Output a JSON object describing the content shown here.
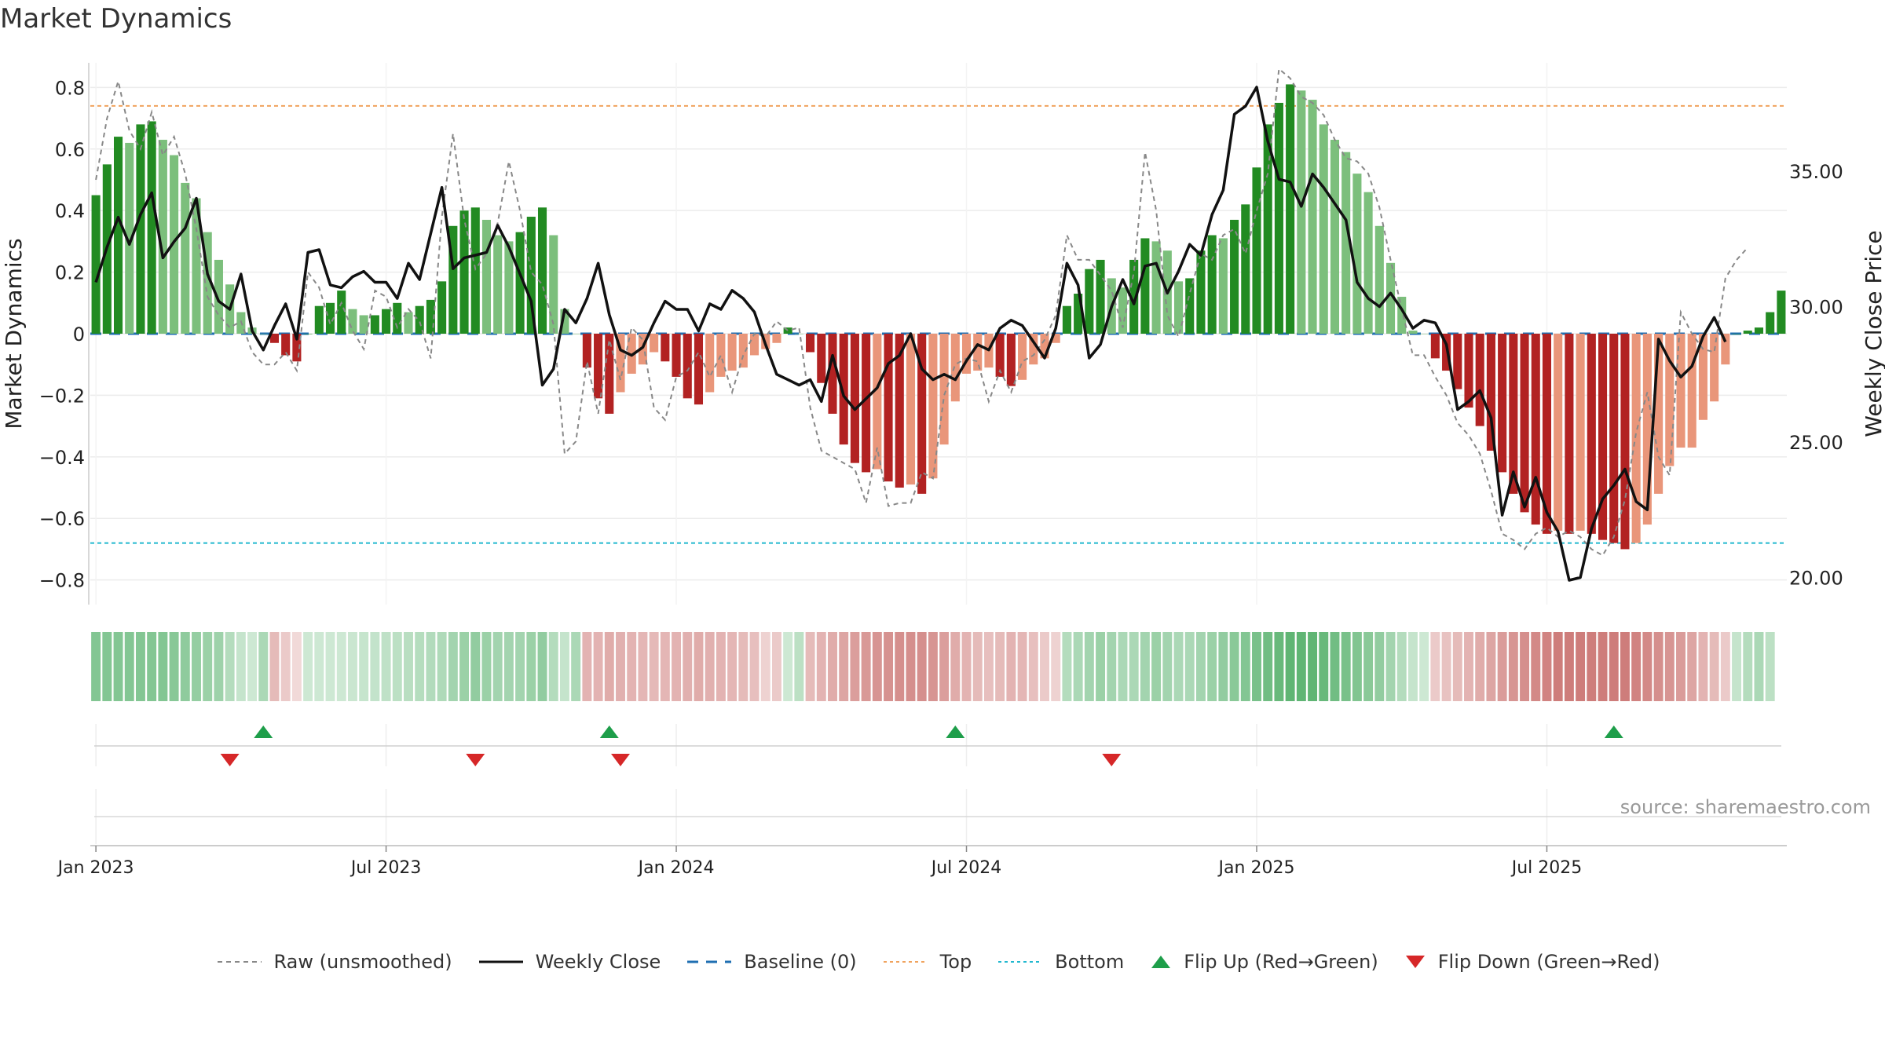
{
  "title": "Market Dynamics",
  "source": "source: sharemaestro.com",
  "colors": {
    "strong_green": "#228b22",
    "light_green": "#7cbf7c",
    "strong_red": "#b22222",
    "light_red": "#e9967a",
    "price_line": "#111111",
    "raw_line": "#888888",
    "baseline": "#1f6fb2",
    "top": "#f0a35e",
    "bottom": "#22b8cf",
    "flip_up": "#1e9e4a",
    "flip_down": "#d62728"
  },
  "legend": [
    {
      "key": "raw",
      "label": "Raw (unsmoothed)"
    },
    {
      "key": "close",
      "label": "Weekly Close"
    },
    {
      "key": "baseline",
      "label": "Baseline (0)"
    },
    {
      "key": "top",
      "label": "Top"
    },
    {
      "key": "bottom",
      "label": "Bottom"
    },
    {
      "key": "flip_up",
      "label": "Flip Up (Red→Green)"
    },
    {
      "key": "flip_down",
      "label": "Flip Down (Green→Red)"
    }
  ],
  "chart_data": {
    "type": "bar",
    "ylabel": "Market Dynamics",
    "y2label": "Weekly Close Price",
    "ylim": [
      -0.88,
      0.88
    ],
    "y2lim": [
      19.0,
      39.0
    ],
    "yticks": [
      {
        "v": 0.8,
        "t": "0.8"
      },
      {
        "v": 0.6,
        "t": "0.6"
      },
      {
        "v": 0.4,
        "t": "0.4"
      },
      {
        "v": 0.2,
        "t": "0.2"
      },
      {
        "v": 0,
        "t": "0"
      },
      {
        "v": -0.2,
        "t": "−0.2"
      },
      {
        "v": -0.4,
        "t": "−0.4"
      },
      {
        "v": -0.6,
        "t": "−0.6"
      },
      {
        "v": -0.8,
        "t": "−0.8"
      }
    ],
    "y2ticks": [
      {
        "v": 35,
        "t": "35.00"
      },
      {
        "v": 30,
        "t": "30.00"
      },
      {
        "v": 25,
        "t": "25.00"
      },
      {
        "v": 20,
        "t": "20.00"
      }
    ],
    "xticks": [
      {
        "i": 0,
        "t": "Jan 2023"
      },
      {
        "i": 26,
        "t": "Jul 2023"
      },
      {
        "i": 52,
        "t": "Jan 2024"
      },
      {
        "i": 78,
        "t": "Jul 2024"
      },
      {
        "i": 104,
        "t": "Jan 2025"
      },
      {
        "i": 130,
        "t": "Jul 2025"
      }
    ],
    "top_line": 0.74,
    "bottom_line": -0.68,
    "start_label": "Jan 2023",
    "momentum": [
      0.45,
      0.55,
      0.64,
      0.62,
      0.68,
      0.69,
      0.63,
      0.58,
      0.49,
      0.44,
      0.33,
      0.24,
      0.16,
      0.07,
      0.02,
      0.0,
      -0.03,
      -0.07,
      -0.09,
      0.0,
      0.09,
      0.1,
      0.14,
      0.08,
      0.06,
      0.06,
      0.08,
      0.1,
      0.07,
      0.09,
      0.11,
      0.17,
      0.35,
      0.4,
      0.41,
      0.37,
      0.32,
      0.3,
      0.33,
      0.38,
      0.41,
      0.32,
      0.08,
      0.0,
      -0.11,
      -0.21,
      -0.26,
      -0.19,
      -0.13,
      -0.1,
      -0.06,
      -0.09,
      -0.14,
      -0.21,
      -0.23,
      -0.19,
      -0.14,
      -0.12,
      -0.11,
      -0.07,
      -0.05,
      -0.03,
      0.02,
      0.0,
      -0.06,
      -0.16,
      -0.26,
      -0.36,
      -0.42,
      -0.45,
      -0.44,
      -0.48,
      -0.5,
      -0.49,
      -0.52,
      -0.47,
      -0.36,
      -0.22,
      -0.13,
      -0.12,
      -0.11,
      -0.14,
      -0.17,
      -0.15,
      -0.1,
      -0.08,
      -0.03,
      0.09,
      0.13,
      0.21,
      0.24,
      0.18,
      0.15,
      0.24,
      0.31,
      0.3,
      0.27,
      0.17,
      0.18,
      0.27,
      0.32,
      0.31,
      0.37,
      0.42,
      0.54,
      0.68,
      0.75,
      0.81,
      0.79,
      0.76,
      0.68,
      0.63,
      0.59,
      0.52,
      0.46,
      0.35,
      0.23,
      0.12,
      0.01,
      0.0,
      -0.08,
      -0.12,
      -0.18,
      -0.24,
      -0.3,
      -0.38,
      -0.45,
      -0.52,
      -0.58,
      -0.62,
      -0.65,
      -0.64,
      -0.65,
      -0.64,
      -0.65,
      -0.67,
      -0.68,
      -0.7,
      -0.68,
      -0.62,
      -0.52,
      -0.43,
      -0.37,
      -0.37,
      -0.28,
      -0.22,
      -0.1,
      0.0,
      0.01,
      0.02,
      0.07,
      0.14
    ],
    "raw": [
      0.5,
      0.7,
      0.82,
      0.66,
      0.6,
      0.72,
      0.58,
      0.64,
      0.52,
      0.34,
      0.12,
      0.06,
      0.02,
      0.04,
      -0.06,
      -0.1,
      -0.1,
      -0.06,
      -0.12,
      0.2,
      0.15,
      0.03,
      0.1,
      0.01,
      -0.05,
      0.14,
      0.12,
      0.02,
      0.08,
      0.04,
      -0.08,
      0.38,
      0.65,
      0.37,
      0.21,
      0.26,
      0.36,
      0.56,
      0.4,
      0.2,
      0.16,
      0.03,
      -0.39,
      -0.35,
      -0.09,
      -0.26,
      -0.02,
      -0.15,
      0.02,
      -0.02,
      -0.24,
      -0.28,
      -0.14,
      -0.12,
      -0.06,
      -0.14,
      -0.07,
      -0.19,
      -0.07,
      0.0,
      -0.01,
      0.04,
      0.01,
      0.02,
      -0.24,
      -0.38,
      -0.4,
      -0.42,
      -0.44,
      -0.55,
      -0.37,
      -0.56,
      -0.55,
      -0.55,
      -0.45,
      -0.47,
      -0.2,
      -0.1,
      -0.08,
      -0.09,
      -0.22,
      -0.12,
      -0.19,
      -0.09,
      -0.07,
      -0.02,
      0.06,
      0.32,
      0.24,
      0.24,
      0.19,
      0.14,
      0.02,
      0.2,
      0.59,
      0.4,
      0.06,
      -0.01,
      0.13,
      0.26,
      0.24,
      0.32,
      0.34,
      0.26,
      0.4,
      0.52,
      0.86,
      0.83,
      0.77,
      0.75,
      0.71,
      0.63,
      0.57,
      0.56,
      0.52,
      0.41,
      0.24,
      0.08,
      -0.07,
      -0.07,
      -0.14,
      -0.2,
      -0.29,
      -0.33,
      -0.39,
      -0.51,
      -0.65,
      -0.67,
      -0.7,
      -0.65,
      -0.63,
      -0.66,
      -0.64,
      -0.66,
      -0.7,
      -0.72,
      -0.66,
      -0.54,
      -0.32,
      -0.19,
      -0.4,
      -0.46,
      0.07,
      0.0,
      -0.05,
      -0.06,
      0.18,
      0.24,
      0.28
    ],
    "close": [
      30.9,
      32.2,
      33.3,
      32.3,
      33.4,
      34.2,
      31.8,
      32.4,
      32.9,
      34.0,
      31.2,
      30.2,
      29.9,
      31.2,
      29.1,
      28.4,
      29.3,
      30.1,
      28.8,
      32.0,
      32.1,
      30.8,
      30.7,
      31.1,
      31.3,
      30.9,
      30.9,
      30.3,
      31.6,
      31.0,
      32.7,
      34.4,
      31.4,
      31.8,
      31.9,
      32.0,
      33.0,
      32.2,
      31.2,
      30.2,
      27.1,
      27.7,
      29.9,
      29.4,
      30.3,
      31.6,
      29.7,
      28.4,
      28.2,
      28.5,
      29.4,
      30.2,
      29.9,
      29.9,
      29.1,
      30.1,
      29.9,
      30.6,
      30.3,
      29.8,
      28.6,
      27.5,
      27.3,
      27.1,
      27.3,
      26.5,
      28.2,
      26.7,
      26.2,
      26.6,
      27.0,
      27.9,
      28.2,
      29.0,
      27.7,
      27.3,
      27.5,
      27.3,
      28.0,
      28.6,
      28.4,
      29.2,
      29.5,
      29.3,
      28.7,
      28.1,
      29.2,
      31.6,
      30.8,
      28.1,
      28.6,
      30.0,
      31.0,
      30.1,
      31.5,
      31.6,
      30.5,
      31.3,
      32.3,
      31.9,
      33.4,
      34.3,
      37.1,
      37.4,
      38.1,
      36.1,
      34.7,
      34.6,
      33.7,
      34.9,
      34.4,
      33.8,
      33.2,
      30.9,
      30.3,
      30.0,
      30.5,
      29.9,
      29.2,
      29.5,
      29.4,
      28.6,
      26.2,
      26.5,
      26.9,
      25.9,
      22.3,
      23.9,
      22.6,
      23.7,
      22.4,
      21.7,
      19.9,
      20.0,
      21.8,
      22.9,
      23.4,
      24.0,
      22.8,
      22.5,
      28.8,
      28.0,
      27.4,
      27.8,
      28.9,
      29.6,
      28.7
    ]
  },
  "bands": [
    0.74,
    0.74,
    0.74,
    0.74,
    0.74,
    0.74,
    0.74,
    0.71,
    0.67,
    0.63,
    0.6,
    0.58,
    0.45,
    0.35,
    0.3,
    0.5,
    0.45,
    0.35,
    0.25,
    0.3,
    0.3,
    0.3,
    0.3,
    0.32,
    0.34,
    0.36,
    0.38,
    0.4,
    0.42,
    0.44,
    0.46,
    0.48,
    0.55,
    0.6,
    0.65,
    0.6,
    0.55,
    0.55,
    0.55,
    0.6,
    0.65,
    0.45,
    0.35,
    0.5,
    0.5,
    0.5,
    0.55,
    0.52,
    0.5,
    0.48,
    0.46,
    0.48,
    0.5,
    0.52,
    0.55,
    0.52,
    0.5,
    0.48,
    0.45,
    0.42,
    0.3,
    0.35,
    0.3,
    0.4,
    0.45,
    0.5,
    0.55,
    0.6,
    0.64,
    0.67,
    0.7,
    0.72,
    0.74,
    0.74,
    0.74,
    0.7,
    0.64,
    0.55,
    0.5,
    0.45,
    0.42,
    0.45,
    0.5,
    0.48,
    0.42,
    0.35,
    0.3,
    0.45,
    0.5,
    0.55,
    0.6,
    0.55,
    0.5,
    0.5,
    0.55,
    0.6,
    0.55,
    0.5,
    0.5,
    0.55,
    0.6,
    0.65,
    0.7,
    0.74,
    0.8,
    0.85,
    0.9,
    0.95,
    0.95,
    0.95,
    0.9,
    0.85,
    0.8,
    0.75,
    0.7,
    0.65,
    0.55,
    0.45,
    0.35,
    0.3,
    0.35,
    0.4,
    0.45,
    0.5,
    0.55,
    0.6,
    0.65,
    0.7,
    0.74,
    0.78,
    0.82,
    0.86,
    0.86,
    0.86,
    0.86,
    0.86,
    0.86,
    0.86,
    0.82,
    0.78,
    0.74,
    0.7,
    0.65,
    0.6,
    0.5,
    0.45,
    0.35,
    0.35,
    0.45,
    0.5,
    0.4
  ],
  "flips_up": [
    15,
    46,
    77,
    136
  ],
  "flips_down": [
    12,
    34,
    47,
    91
  ]
}
